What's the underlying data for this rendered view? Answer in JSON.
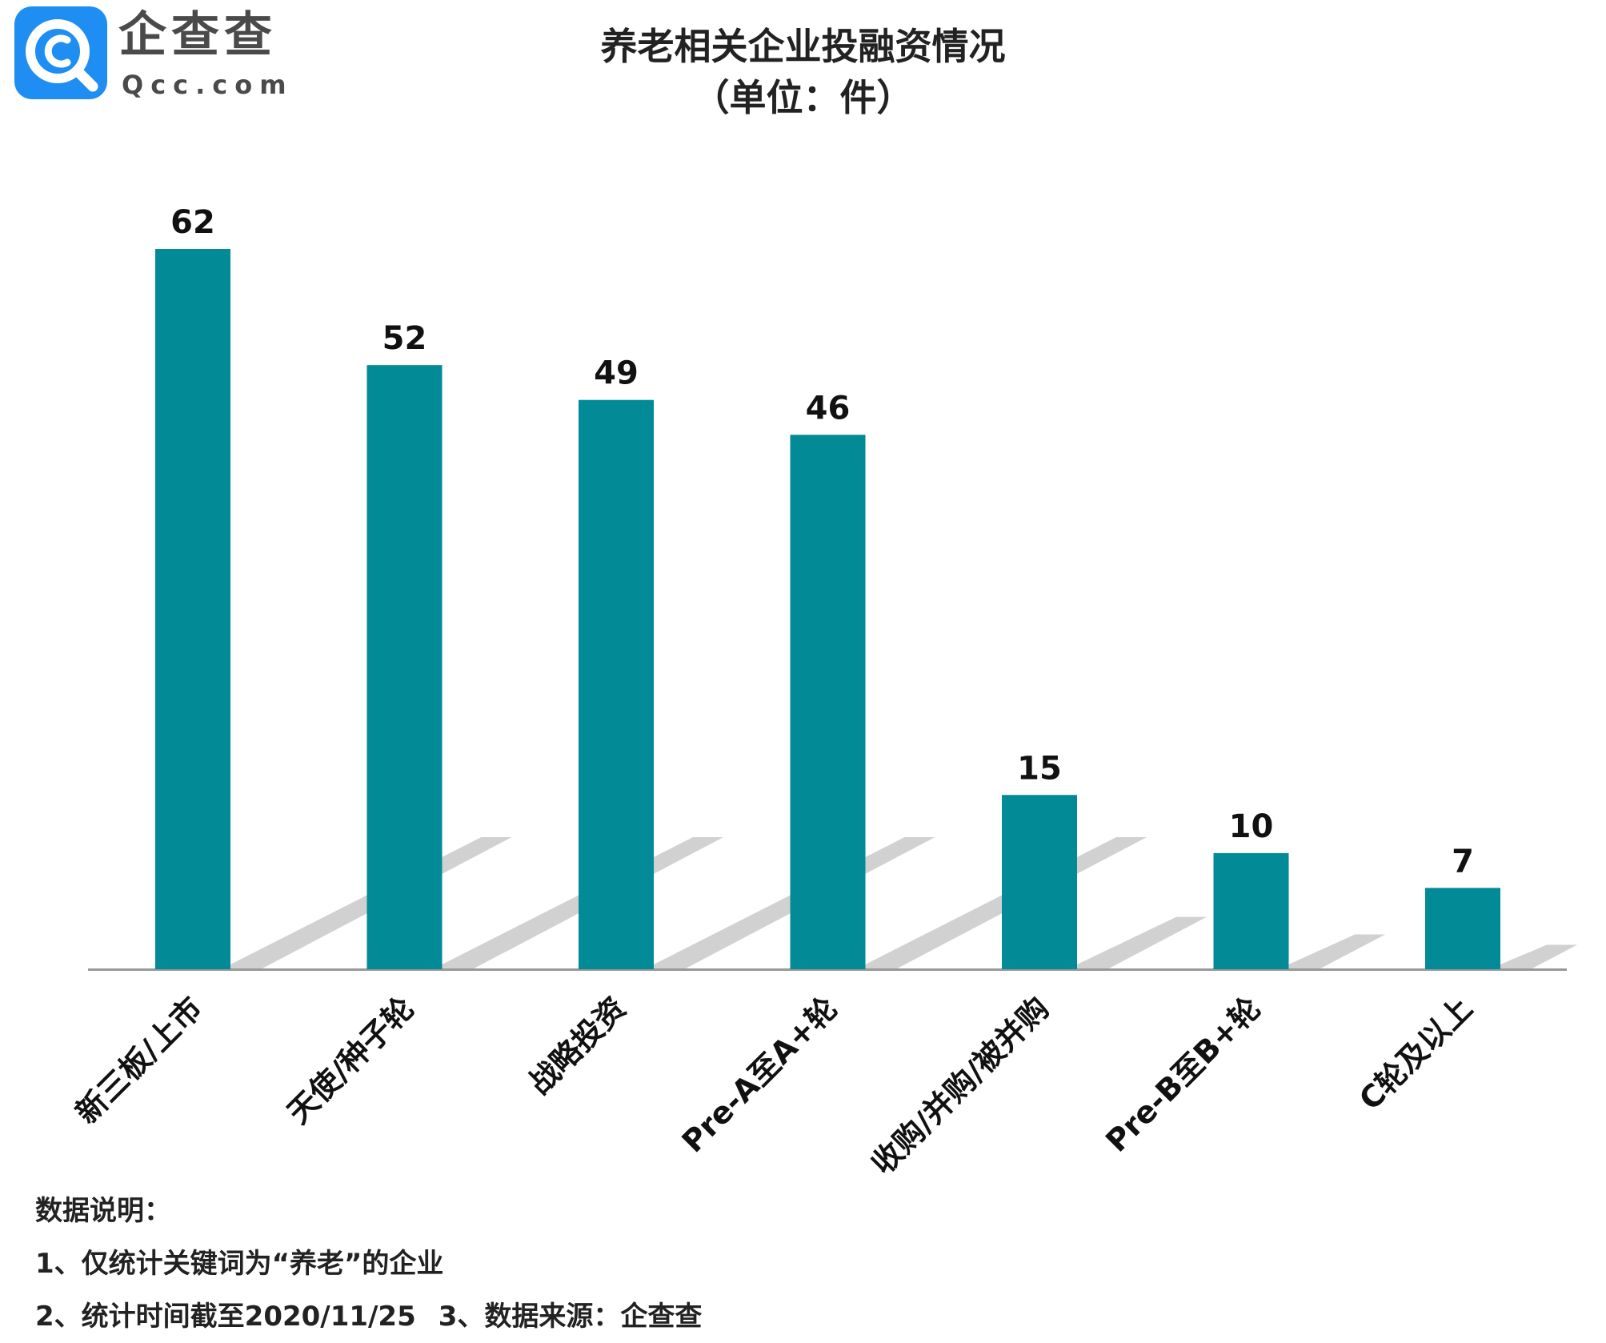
{
  "logo": {
    "name_cn": "企查查",
    "name_en": "Qcc.com",
    "icon": "qcc-magnifier-icon",
    "colors": {
      "icon_bg": "#1f8ef2",
      "text": "#4a4a4a"
    }
  },
  "title": {
    "line1": "养老相关企业投融资情况",
    "line2": "（单位：件）"
  },
  "chart_data": {
    "type": "bar",
    "title": "养老相关企业投融资情况（单位：件）",
    "categories": [
      "新三板/上市",
      "天使/种子轮",
      "战略投资",
      "Pre-A至A+轮",
      "收购/并购/被并购",
      "Pre-B至B+轮",
      "C轮及以上"
    ],
    "series": [
      {
        "name": "",
        "values": [
          62,
          52,
          49,
          46,
          15,
          10,
          7
        ]
      }
    ],
    "xlabel": "",
    "ylabel": "",
    "ylim": [
      0,
      62
    ],
    "grid": false,
    "legend": "none",
    "data_labels": true,
    "colors": {
      "bar": "#028a96",
      "shadow": "#cccccc",
      "axis": "#999999"
    }
  },
  "notes": {
    "heading": "数据说明：",
    "line1": "1、仅统计关键词为“养老”的企业",
    "line2a": "2、统计时间截至2020/11/25",
    "line2b": "3、数据来源：企查查"
  }
}
